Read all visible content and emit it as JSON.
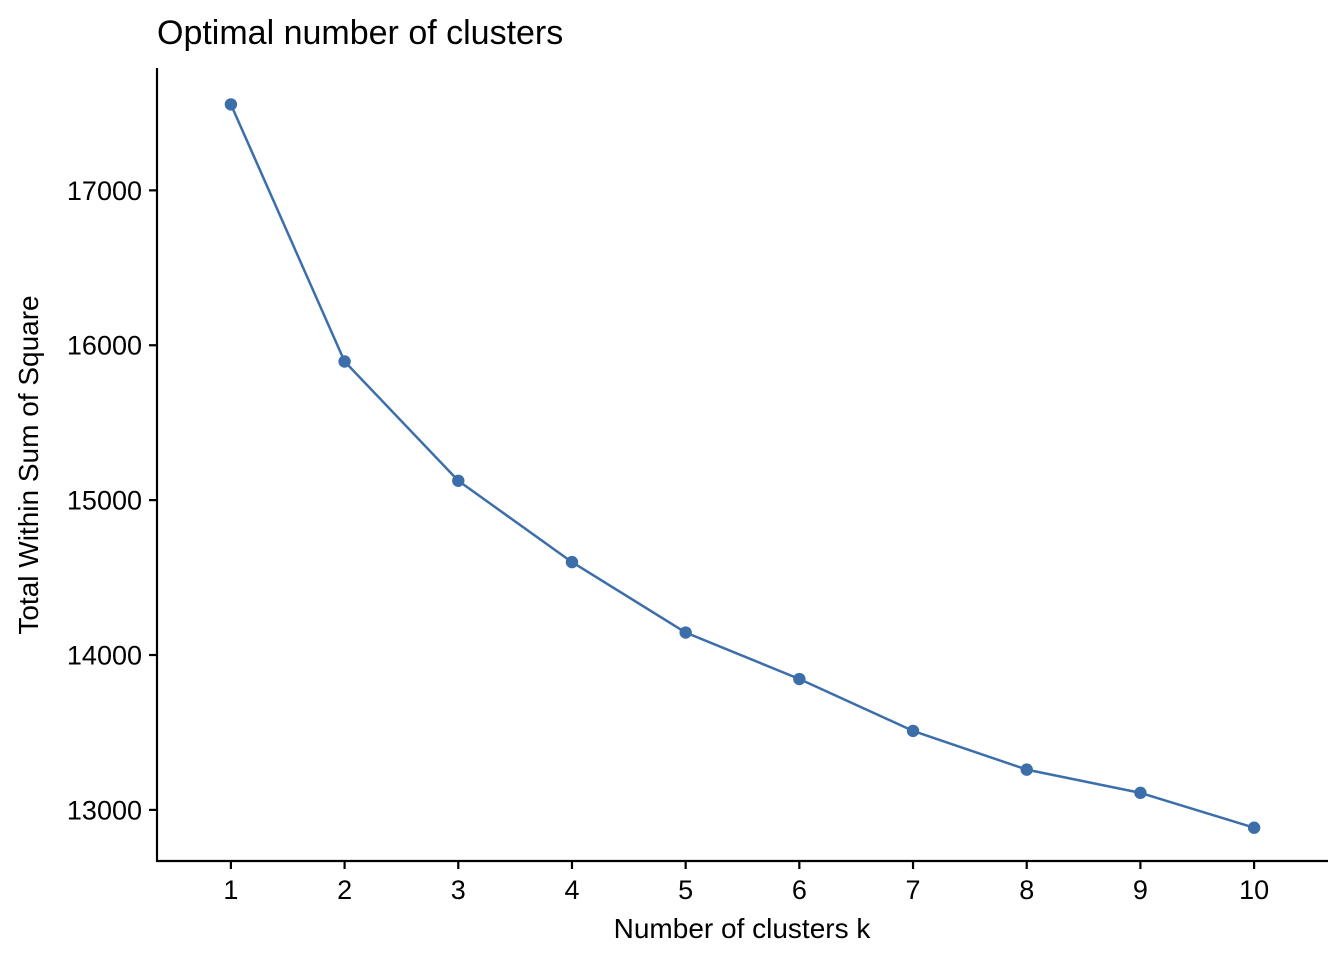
{
  "chart_data": {
    "type": "line",
    "title": "Optimal number of clusters",
    "xlabel": "Number of clusters k",
    "ylabel": "Total Within Sum of Square",
    "x": [
      1,
      2,
      3,
      4,
      5,
      6,
      7,
      8,
      9,
      10
    ],
    "x_ticks": [
      "1",
      "2",
      "3",
      "4",
      "5",
      "6",
      "7",
      "8",
      "9",
      "10"
    ],
    "y_ticks": [
      13000,
      14000,
      15000,
      16000,
      17000
    ],
    "xlim": [
      0.35,
      10.65
    ],
    "ylim": [
      12670,
      17790
    ],
    "grid": false,
    "series": [
      {
        "values": [
          17555,
          15895,
          15125,
          14600,
          14145,
          13845,
          13510,
          13260,
          13110,
          12885
        ],
        "color": "#3C6FAA"
      }
    ]
  }
}
